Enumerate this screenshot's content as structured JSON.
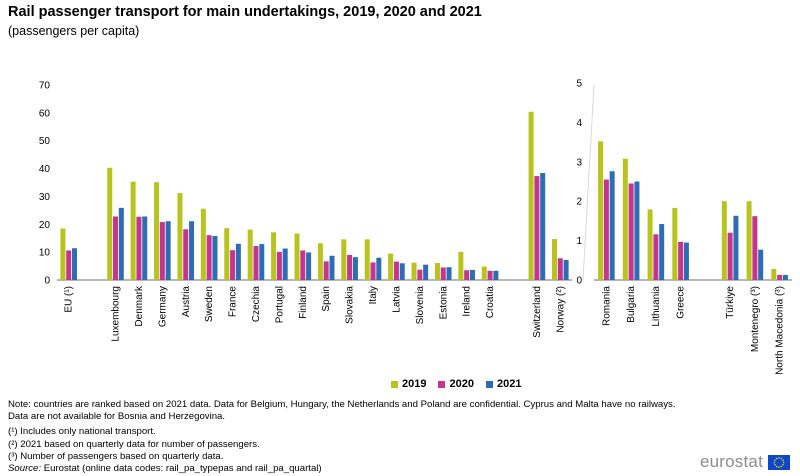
{
  "header": {
    "title": "Rail passenger transport for main undertakings, 2019, 2020 and 2021",
    "subtitle": "(passengers per capita)"
  },
  "legend": {
    "labels": [
      "2019",
      "2020",
      "2021"
    ]
  },
  "colors": {
    "2019": "#b9c31e",
    "2020": "#c5358f",
    "2021": "#2e6db4",
    "axis": "#6e6e6e",
    "grid": "#e6e6e6",
    "logo_blue": "#0e47cb",
    "logo_star": "#ffe600"
  },
  "chart_data": [
    {
      "type": "bar",
      "ylim": [
        0,
        70
      ],
      "yticks": [
        0,
        10,
        20,
        30,
        40,
        50,
        60,
        70
      ],
      "grid": false,
      "categories": [
        "EU (¹)",
        "",
        "Luxembourg",
        "Denmark",
        "Germany",
        "Austria",
        "Sweden",
        "France",
        "Czechia",
        "Portugal",
        "Finland",
        "Spain",
        "Slovakia",
        "Italy",
        "Latvia",
        "Slovenia",
        "Estonia",
        "Ireland",
        "Croatia",
        "",
        "Switzerland",
        "Norway (²)"
      ],
      "series": [
        {
          "name": "2019",
          "values": [
            18.5,
            null,
            40.3,
            35.3,
            35.1,
            31.2,
            25.6,
            18.6,
            18.1,
            17.1,
            16.7,
            13.2,
            14.6,
            14.6,
            9.5,
            6.2,
            6.1,
            10.1,
            4.8,
            null,
            60.4,
            14.7
          ]
        },
        {
          "name": "2020",
          "values": [
            10.6,
            null,
            22.8,
            22.7,
            20.8,
            18.2,
            16.1,
            10.7,
            12.2,
            10.1,
            10.6,
            6.7,
            9.0,
            6.3,
            6.6,
            3.7,
            4.5,
            3.5,
            3.3,
            null,
            37.3,
            7.8
          ]
        },
        {
          "name": "2021",
          "values": [
            11.4,
            null,
            25.9,
            22.8,
            21.1,
            21.1,
            15.8,
            13.0,
            12.9,
            11.3,
            9.9,
            8.7,
            8.2,
            8.0,
            6.0,
            5.5,
            4.6,
            3.6,
            3.3,
            null,
            38.4,
            7.2
          ]
        }
      ]
    },
    {
      "type": "bar",
      "ylim": [
        0,
        5
      ],
      "yticks": [
        0,
        1,
        2,
        3,
        4,
        5
      ],
      "grid": false,
      "categories": [
        "Romania",
        "Bulgaria",
        "Lithuania",
        "Greece",
        "",
        "Türkiye",
        "Montenegro (³)",
        "North Macedonia (³)"
      ],
      "series": [
        {
          "name": "2019",
          "values": [
            3.52,
            3.08,
            1.79,
            1.83,
            null,
            2.0,
            2.0,
            0.28
          ]
        },
        {
          "name": "2020",
          "values": [
            2.55,
            2.45,
            1.16,
            0.97,
            null,
            1.2,
            1.62,
            0.13
          ]
        },
        {
          "name": "2021",
          "values": [
            2.76,
            2.5,
            1.42,
            0.95,
            null,
            1.63,
            0.77,
            0.13
          ]
        }
      ]
    }
  ],
  "notes": {
    "note": "Note: countries are ranked based on 2021 data. Data for Belgium, Hungary, the Netherlands and Poland are confidential. Cyprus and Malta have no railways. Data are not available for Bosnia and Herzegovina.",
    "fn1": "(¹) Includes only national transport.",
    "fn2": "(²) 2021 based on quarterly data for number of passengers.",
    "fn3": "(³) Number of passengers based on quarterly data.",
    "source_label": "Source:",
    "source_text": " Eurostat (online data codes: rail_pa_typepas and rail_pa_quartal)"
  },
  "logo": {
    "text": "eurostat"
  }
}
